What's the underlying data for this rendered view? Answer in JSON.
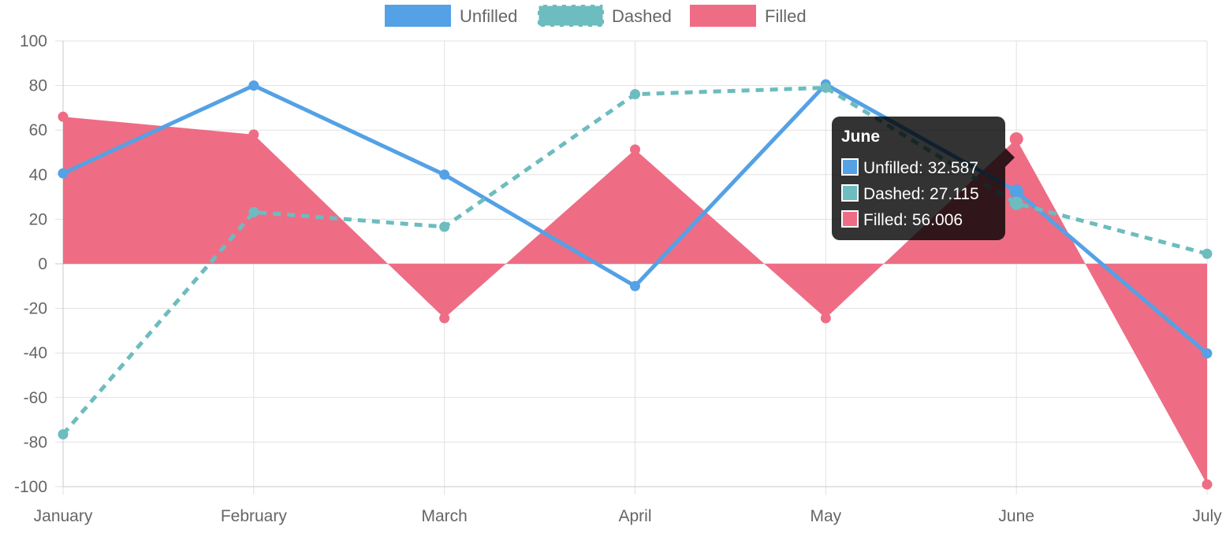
{
  "chart_data": {
    "type": "line",
    "categories": [
      "January",
      "February",
      "March",
      "April",
      "May",
      "June",
      "July"
    ],
    "ylim": [
      -100,
      100
    ],
    "yticks": [
      100,
      80,
      60,
      40,
      20,
      0,
      -20,
      -40,
      -60,
      -80,
      -100
    ],
    "grid": true,
    "legend_position": "top",
    "series": [
      {
        "name": "Unfilled",
        "values": [
          40.6,
          80,
          40,
          -10,
          80.5,
          32.587,
          -40.2
        ],
        "color": "#54a1e5",
        "style": "solid",
        "fill": false
      },
      {
        "name": "Dashed",
        "values": [
          -76.5,
          23.2,
          16.6,
          76.1,
          79,
          27.115,
          4.5
        ],
        "color": "#6dbcbf",
        "style": "dashed",
        "fill": false
      },
      {
        "name": "Filled",
        "values": [
          66,
          58,
          -24.4,
          51.3,
          -24.4,
          56.006,
          -99
        ],
        "color": "#ee6d84",
        "style": "solid",
        "fill": true
      }
    ],
    "tooltip": {
      "title": "June",
      "category_index": 5,
      "lines": [
        "Unfilled: 32.587",
        "Dashed: 27.115",
        "Filled: 56.006"
      ]
    }
  }
}
